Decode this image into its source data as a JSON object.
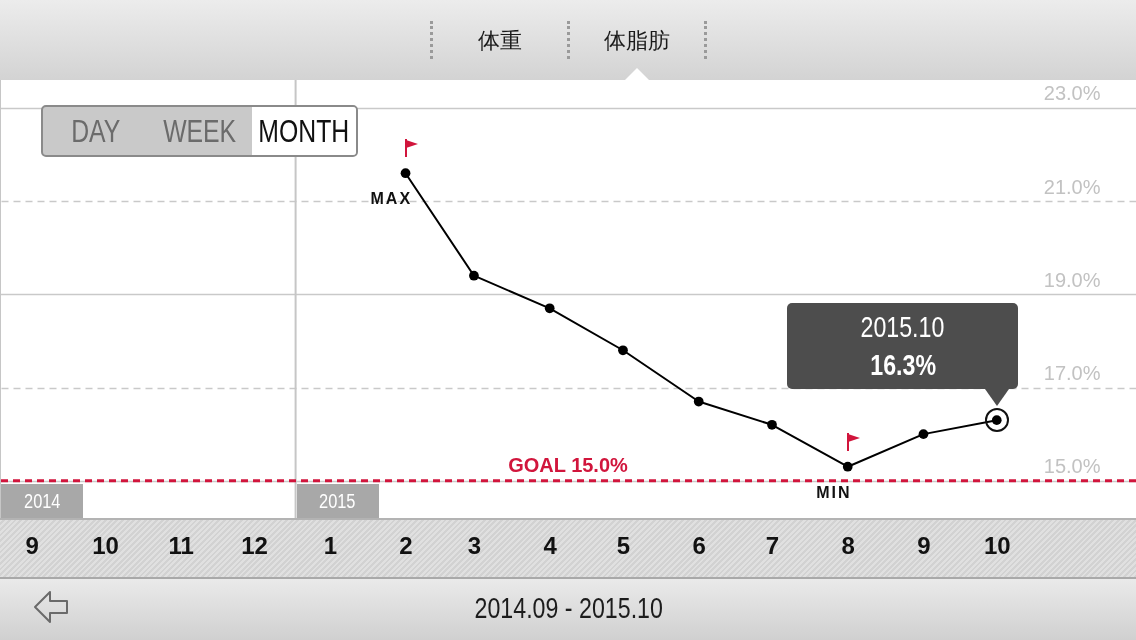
{
  "chart_data": {
    "type": "line",
    "x": [
      "2015-02",
      "2015-03",
      "2015-04",
      "2015-05",
      "2015-06",
      "2015-07",
      "2015-08",
      "2015-09",
      "2015-10"
    ],
    "series": [
      {
        "color": "#000000",
        "values": [
          21.6,
          19.4,
          18.7,
          17.8,
          16.7,
          16.2,
          15.3,
          16.0,
          16.3
        ]
      }
    ],
    "xlim": [
      "2014-08-19",
      "2015-11-27"
    ],
    "xticks": [
      {
        "value": "2014-09",
        "label": "9"
      },
      {
        "value": "2014-10",
        "label": "10"
      },
      {
        "value": "2014-11",
        "label": "11"
      },
      {
        "value": "2014-12",
        "label": "12"
      },
      {
        "value": "2015-01",
        "label": "1"
      },
      {
        "value": "2015-02",
        "label": "2"
      },
      {
        "value": "2015-03",
        "label": "3"
      },
      {
        "value": "2015-04",
        "label": "4"
      },
      {
        "value": "2015-05",
        "label": "5"
      },
      {
        "value": "2015-06",
        "label": "6"
      },
      {
        "value": "2015-07",
        "label": "7"
      },
      {
        "value": "2015-08",
        "label": "8"
      },
      {
        "value": "2015-09",
        "label": "9"
      },
      {
        "value": "2015-10",
        "label": "10"
      }
    ],
    "ylim": [
      14.2,
      23.6
    ],
    "yticks": [
      {
        "value": 15,
        "label": "15.0%"
      },
      {
        "value": 17,
        "label": "17.0%"
      },
      {
        "value": 19,
        "label": "19.0%"
      },
      {
        "value": 21,
        "label": "21.0%"
      },
      {
        "value": 23,
        "label": "23.0%"
      }
    ],
    "grid": "y",
    "marker": "circle",
    "ref_lines": [
      {
        "axis": "x",
        "value": "2014-08-19",
        "label": "2014",
        "color": "#c6c6c6"
      },
      {
        "axis": "x",
        "value": "2014-12-18",
        "label": "2015",
        "color": "#c6c6c6"
      },
      {
        "axis": "y",
        "value": 15,
        "label": "GOAL 15.0%",
        "color": "#d1153c",
        "line_style": "dashed"
      }
    ],
    "annotations": [
      {
        "text": "MAX",
        "x": "2015-02",
        "y": 21.6
      },
      {
        "text": "MIN",
        "x": "2015-08",
        "y": 15.3
      },
      {
        "text": "16.3%",
        "x": "2015-10",
        "y": 16.3
      },
      "2015.10",
      "体重",
      "体脂肪",
      "DAY",
      "WEEK",
      "MONTH",
      "2014.09 - 2015.10"
    ]
  }
}
